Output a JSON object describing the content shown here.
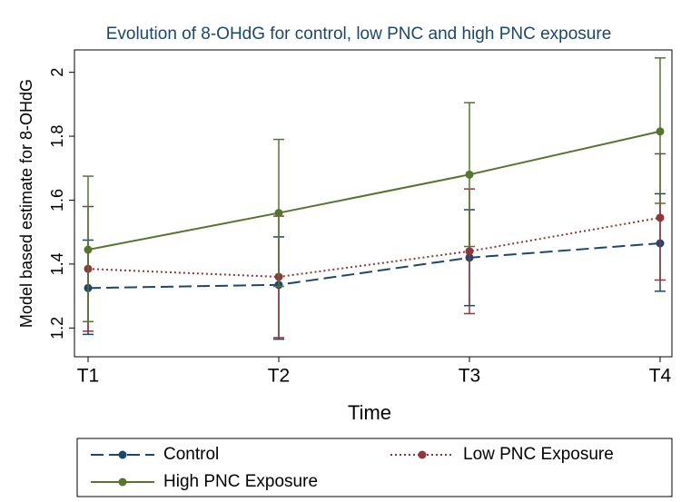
{
  "chart_data": {
    "type": "line",
    "title": "Evolution of 8-OHdG for control, low PNC and high PNC exposure",
    "x_label": "Time",
    "y_label": "Model based estimate for 8-OHdG",
    "categories": [
      "T1",
      "T2",
      "T3",
      "T4"
    ],
    "ylim": [
      1.11,
      2.07
    ],
    "yticks": [
      1.2,
      1.4,
      1.6,
      1.8,
      2
    ],
    "grid": false,
    "legend": "bottom",
    "series": [
      {
        "name": "Control",
        "color": "#1a476f",
        "dash": "dashed",
        "values": [
          1.325,
          1.335,
          1.42,
          1.465
        ],
        "lower": [
          1.18,
          1.165,
          1.27,
          1.315
        ],
        "upper": [
          1.475,
          1.485,
          1.57,
          1.62
        ]
      },
      {
        "name": "Low PNC Exposure",
        "color": "#90353b",
        "dash": "dotted",
        "values": [
          1.385,
          1.36,
          1.44,
          1.545
        ],
        "lower": [
          1.19,
          1.17,
          1.245,
          1.35
        ],
        "upper": [
          1.58,
          1.55,
          1.635,
          1.745
        ]
      },
      {
        "name": "High PNC Exposure",
        "color": "#55752f",
        "dash": "solid",
        "values": [
          1.445,
          1.56,
          1.68,
          1.815
        ],
        "lower": [
          1.22,
          1.33,
          1.455,
          1.59
        ],
        "upper": [
          1.675,
          1.79,
          1.905,
          2.045
        ]
      }
    ]
  }
}
